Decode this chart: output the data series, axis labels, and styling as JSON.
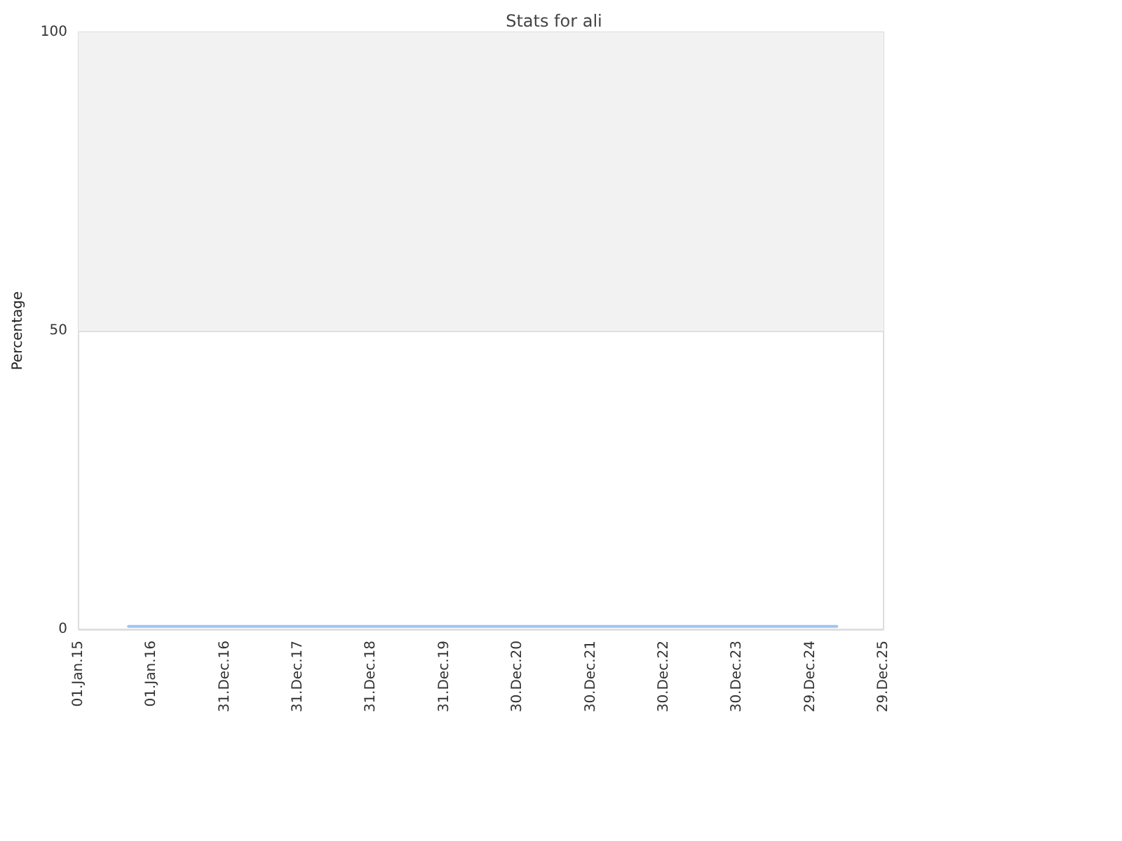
{
  "chart_data": {
    "type": "line",
    "title": "Stats for ali",
    "ylabel": "Percentage",
    "x": [
      "2015-09-07",
      "2025-05-10"
    ],
    "series": [
      {
        "color": "#9ec5f2",
        "values": [
          0.5,
          0.5
        ]
      }
    ],
    "xlim": [
      "2015-01-01",
      "2025-12-29"
    ],
    "xticks": [
      {
        "value": "2015-01-01",
        "label": "01.Jan.15"
      },
      {
        "value": "2016-01-01",
        "label": "01.Jan.16"
      },
      {
        "value": "2016-12-31",
        "label": "31.Dec.16"
      },
      {
        "value": "2017-12-31",
        "label": "31.Dec.17"
      },
      {
        "value": "2018-12-31",
        "label": "31.Dec.18"
      },
      {
        "value": "2019-12-31",
        "label": "31.Dec.19"
      },
      {
        "value": "2020-12-30",
        "label": "30.Dec.20"
      },
      {
        "value": "2021-12-30",
        "label": "30.Dec.21"
      },
      {
        "value": "2022-12-30",
        "label": "30.Dec.22"
      },
      {
        "value": "2023-12-30",
        "label": "30.Dec.23"
      },
      {
        "value": "2024-12-29",
        "label": "29.Dec.24"
      },
      {
        "value": "2025-12-29",
        "label": "29.Dec.25"
      }
    ],
    "ylim": [
      0,
      100
    ],
    "yticks": [
      0,
      50,
      100
    ],
    "bands": [
      {
        "axis": "y",
        "from": 50,
        "to": 100,
        "color": "#f2f2f2"
      }
    ],
    "grid": "y",
    "marker": "none",
    "line_style": "solid"
  }
}
